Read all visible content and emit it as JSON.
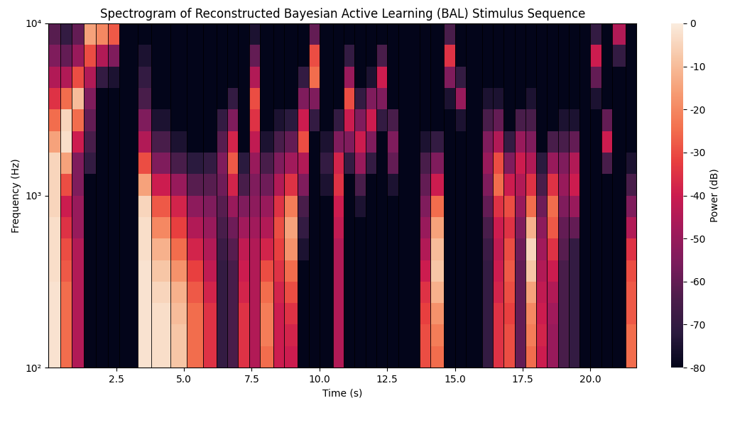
{
  "chart_data": {
    "type": "heatmap",
    "title": "Spectrogram of Reconstructed Bayesian Active Learning (BAL) Stimulus Sequence",
    "x_label": "Time (s)",
    "y_label": "Frequency (Hz)",
    "log": "y",
    "xlim": [
      0,
      21.7
    ],
    "xticks": [
      2.5,
      5.0,
      7.5,
      10.0,
      12.5,
      15.0,
      17.5,
      20.0
    ],
    "ylim": [
      100,
      10000
    ],
    "yticks": [
      {
        "value": 100,
        "label": "10²"
      },
      {
        "value": 1000,
        "label": "10³"
      },
      {
        "value": 10000,
        "label": "10⁴"
      }
    ],
    "colorbar_label": "Power (dB)",
    "colorbar_range": [
      -80,
      0
    ],
    "colorbar_ticks": [
      0,
      -10,
      -20,
      -30,
      -40,
      -50,
      -60,
      -70,
      -80
    ],
    "time_edges": [
      0,
      0.45,
      0.85,
      1.3,
      1.75,
      2.2,
      2.6,
      3.3,
      3.8,
      4.5,
      5.1,
      5.7,
      6.2,
      6.6,
      7.0,
      7.4,
      7.8,
      8.3,
      8.7,
      9.2,
      9.6,
      10.0,
      10.5,
      10.9,
      11.3,
      11.7,
      12.1,
      12.5,
      12.9,
      13.7,
      14.1,
      14.6,
      15.0,
      15.4,
      16.0,
      16.4,
      16.8,
      17.2,
      17.6,
      18.0,
      18.4,
      18.8,
      19.2,
      19.6,
      20.0,
      20.4,
      20.8,
      21.3,
      21.7
    ],
    "frequency_edges": [
      100,
      133.35,
      177.83,
      237.14,
      316.23,
      421.7,
      562.34,
      749.89,
      1000,
      1333.5,
      1778.3,
      2371.4,
      3162.3,
      4217,
      5623.4,
      7498.9,
      10000
    ],
    "cells": [
      [
        -2,
        -2,
        -2,
        -2,
        -3,
        -3,
        -3,
        -5,
        -5,
        -5,
        -15,
        -25,
        -35,
        -45,
        -55,
        -62
      ],
      [
        -25,
        -25,
        -25,
        -25,
        -28,
        -30,
        -35,
        -40,
        -30,
        -15,
        -3,
        -5,
        -25,
        -45,
        -60,
        -70
      ],
      [
        -45,
        -45,
        -45,
        -45,
        -45,
        -45,
        -50,
        -50,
        -55,
        -55,
        -40,
        -25,
        -10,
        -30,
        -50,
        -60
      ],
      [
        -80,
        -80,
        -80,
        -80,
        -80,
        -80,
        -80,
        -80,
        -80,
        -70,
        -65,
        -60,
        -55,
        -45,
        -30,
        -15
      ],
      [
        -80,
        -80,
        -80,
        -80,
        -80,
        -80,
        -80,
        -80,
        -80,
        -80,
        -80,
        -80,
        -80,
        -70,
        -45,
        -20
      ],
      [
        -80,
        -80,
        -80,
        -80,
        -80,
        -80,
        -80,
        -80,
        -80,
        -80,
        -80,
        -80,
        -80,
        -75,
        -55,
        -28
      ],
      [
        -80,
        -80,
        -80,
        -80,
        -80,
        -80,
        -80,
        -80,
        -80,
        -80,
        -80,
        -80,
        -80,
        -80,
        -80,
        -80
      ],
      [
        -2,
        -2,
        -2,
        -2,
        -2,
        -3,
        -3,
        -5,
        -15,
        -30,
        -45,
        -55,
        -65,
        -70,
        -75,
        -80
      ],
      [
        -3,
        -3,
        -3,
        -5,
        -8,
        -12,
        -20,
        -28,
        -40,
        -55,
        -65,
        -75,
        -80,
        -80,
        -80,
        -80
      ],
      [
        -8,
        -8,
        -10,
        -12,
        -18,
        -25,
        -32,
        -38,
        -50,
        -65,
        -75,
        -80,
        -80,
        -80,
        -80,
        -80
      ],
      [
        -25,
        -25,
        -25,
        -28,
        -32,
        -38,
        -45,
        -52,
        -62,
        -72,
        -80,
        -80,
        -80,
        -80,
        -80,
        -80
      ],
      [
        -35,
        -35,
        -35,
        -38,
        -42,
        -45,
        -50,
        -55,
        -62,
        -70,
        -80,
        -80,
        -80,
        -80,
        -80,
        -80
      ],
      [
        -70,
        -70,
        -70,
        -70,
        -70,
        -68,
        -65,
        -62,
        -58,
        -55,
        -62,
        -70,
        -80,
        -80,
        -80,
        -80
      ],
      [
        -65,
        -65,
        -65,
        -65,
        -65,
        -62,
        -58,
        -50,
        -38,
        -28,
        -38,
        -55,
        -70,
        -80,
        -80,
        -80
      ],
      [
        -35,
        -35,
        -35,
        -38,
        -40,
        -42,
        -48,
        -55,
        -65,
        -72,
        -80,
        -80,
        -80,
        -80,
        -80,
        -80
      ],
      [
        -45,
        -45,
        -45,
        -45,
        -45,
        -45,
        -48,
        -52,
        -55,
        -50,
        -42,
        -35,
        -30,
        -45,
        -60,
        -75
      ],
      [
        -25,
        -22,
        -22,
        -25,
        -30,
        -38,
        -45,
        -50,
        -58,
        -65,
        -75,
        -80,
        -80,
        -80,
        -80,
        -80
      ],
      [
        -40,
        -40,
        -40,
        -38,
        -35,
        -32,
        -30,
        -35,
        -45,
        -55,
        -65,
        -75,
        -80,
        -80,
        -80,
        -80
      ],
      [
        -40,
        -38,
        -35,
        -30,
        -25,
        -18,
        -15,
        -22,
        -35,
        -48,
        -60,
        -72,
        -80,
        -80,
        -80,
        -80
      ],
      [
        -80,
        -80,
        -80,
        -80,
        -80,
        -75,
        -70,
        -65,
        -55,
        -45,
        -30,
        -40,
        -55,
        -70,
        -80,
        -80
      ],
      [
        -80,
        -80,
        -80,
        -80,
        -80,
        -80,
        -80,
        -80,
        -80,
        -80,
        -80,
        -70,
        -55,
        -25,
        -30,
        -60
      ],
      [
        -80,
        -80,
        -80,
        -80,
        -80,
        -80,
        -80,
        -80,
        -75,
        -70,
        -75,
        -80,
        -80,
        -80,
        -80,
        -80
      ],
      [
        -45,
        -45,
        -45,
        -45,
        -45,
        -45,
        -42,
        -40,
        -35,
        -38,
        -55,
        -70,
        -80,
        -80,
        -80,
        -80
      ],
      [
        -80,
        -80,
        -80,
        -80,
        -80,
        -80,
        -80,
        -80,
        -80,
        -70,
        -55,
        -40,
        -30,
        -50,
        -70,
        -80
      ],
      [
        -80,
        -80,
        -80,
        -80,
        -80,
        -80,
        -80,
        -75,
        -65,
        -50,
        -40,
        -55,
        -70,
        -80,
        -80,
        -80
      ],
      [
        -80,
        -80,
        -80,
        -80,
        -80,
        -80,
        -80,
        -80,
        -80,
        -70,
        -55,
        -40,
        -55,
        -75,
        -80,
        -80
      ],
      [
        -80,
        -80,
        -80,
        -80,
        -80,
        -80,
        -80,
        -80,
        -80,
        -80,
        -80,
        -70,
        -55,
        -40,
        -65,
        -80
      ],
      [
        -80,
        -80,
        -80,
        -80,
        -80,
        -80,
        -80,
        -80,
        -75,
        -60,
        -55,
        -65,
        -80,
        -80,
        -80,
        -80
      ],
      [
        -80,
        -80,
        -80,
        -80,
        -80,
        -80,
        -80,
        -80,
        -80,
        -80,
        -80,
        -80,
        -80,
        -80,
        -80,
        -80
      ],
      [
        -30,
        -30,
        -32,
        -35,
        -40,
        -45,
        -50,
        -55,
        -60,
        -65,
        -75,
        -80,
        -80,
        -80,
        -80,
        -80
      ],
      [
        -25,
        -22,
        -18,
        -12,
        -8,
        -10,
        -15,
        -25,
        -40,
        -55,
        -70,
        -80,
        -80,
        -80,
        -80,
        -80
      ],
      [
        -80,
        -80,
        -80,
        -80,
        -80,
        -80,
        -80,
        -80,
        -80,
        -80,
        -80,
        -80,
        -75,
        -55,
        -35,
        -65
      ],
      [
        -80,
        -80,
        -80,
        -80,
        -80,
        -80,
        -80,
        -80,
        -80,
        -80,
        -80,
        -75,
        -50,
        -70,
        -80,
        -80
      ],
      [
        -80,
        -80,
        -80,
        -80,
        -80,
        -80,
        -80,
        -80,
        -80,
        -80,
        -80,
        -80,
        -80,
        -80,
        -80,
        -80
      ],
      [
        -70,
        -70,
        -70,
        -70,
        -70,
        -68,
        -65,
        -60,
        -55,
        -50,
        -55,
        -65,
        -75,
        -80,
        -80,
        -80
      ],
      [
        -35,
        -35,
        -35,
        -38,
        -40,
        -42,
        -40,
        -35,
        -25,
        -30,
        -45,
        -60,
        -75,
        -80,
        -80,
        -80
      ],
      [
        -30,
        -30,
        -32,
        -30,
        -28,
        -30,
        -35,
        -30,
        -40,
        -55,
        -70,
        -80,
        -80,
        -80,
        -80,
        -80
      ],
      [
        -60,
        -60,
        -60,
        -60,
        -60,
        -58,
        -55,
        -50,
        -45,
        -40,
        -50,
        -65,
        -80,
        -80,
        -80,
        -80
      ],
      [
        -25,
        -22,
        -20,
        -15,
        -8,
        -5,
        -12,
        -25,
        -35,
        -45,
        -55,
        -65,
        -75,
        -80,
        -80,
        -80
      ],
      [
        -40,
        -38,
        -40,
        -42,
        -45,
        -48,
        -52,
        -58,
        -65,
        -72,
        -80,
        -80,
        -80,
        -80,
        -80,
        -80
      ],
      [
        -50,
        -50,
        -48,
        -45,
        -40,
        -35,
        -28,
        -25,
        -35,
        -50,
        -65,
        -80,
        -80,
        -80,
        -80,
        -80
      ],
      [
        -65,
        -65,
        -65,
        -65,
        -65,
        -62,
        -60,
        -55,
        -50,
        -55,
        -65,
        -75,
        -80,
        -80,
        -80,
        -80
      ],
      [
        -70,
        -70,
        -70,
        -70,
        -70,
        -70,
        -60,
        -50,
        -40,
        -45,
        -60,
        -75,
        -80,
        -80,
        -80,
        -80
      ],
      [
        -80,
        -80,
        -80,
        -80,
        -80,
        -80,
        -80,
        -80,
        -80,
        -80,
        -80,
        -80,
        -80,
        -80,
        -80,
        -80
      ],
      [
        -80,
        -80,
        -80,
        -80,
        -80,
        -80,
        -80,
        -80,
        -80,
        -80,
        -80,
        -80,
        -75,
        -60,
        -40,
        -70
      ],
      [
        -80,
        -80,
        -80,
        -80,
        -80,
        -80,
        -80,
        -80,
        -80,
        -65,
        -40,
        -60,
        -80,
        -80,
        -80,
        -80
      ],
      [
        -80,
        -80,
        -80,
        -80,
        -80,
        -80,
        -80,
        -80,
        -80,
        -80,
        -80,
        -80,
        -80,
        -80,
        -70,
        -45
      ],
      [
        -25,
        -25,
        -28,
        -28,
        -30,
        -35,
        -45,
        -55,
        -65,
        -75,
        -80,
        -80,
        -80,
        -80,
        -80,
        -80
      ]
    ]
  }
}
